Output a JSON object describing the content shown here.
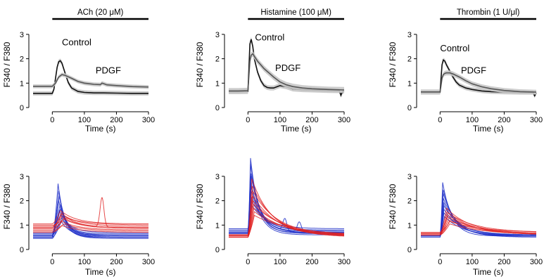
{
  "colors": {
    "control": "#111111",
    "pdgf": "#555555",
    "sem_band": "#c8c8c8",
    "blue_traces": "#1f2fc8",
    "red_traces": "#e02020"
  },
  "chart_data": [
    {
      "type": "line",
      "panel": "top-left",
      "stimulus_label": "ACh (20 μM)",
      "xlabel": "Time (s)",
      "ylabel": "F340 / F380",
      "xlim": [
        -60,
        300
      ],
      "ylim": [
        0,
        3.4
      ],
      "xticks": [
        0,
        100,
        200,
        300
      ],
      "yticks": [
        0,
        1,
        2,
        3
      ],
      "stim_bar": [
        0,
        300
      ],
      "series": [
        {
          "name": "Control",
          "label_at": [
            30,
            2.55
          ],
          "band": 0.09,
          "x": [
            -60,
            -30,
            0,
            5,
            10,
            15,
            20,
            25,
            30,
            40,
            50,
            60,
            80,
            100,
            130,
            160,
            200,
            250,
            300
          ],
          "y": [
            0.58,
            0.58,
            0.58,
            0.75,
            1.2,
            1.65,
            1.88,
            1.92,
            1.82,
            1.4,
            1.02,
            0.8,
            0.66,
            0.62,
            0.6,
            0.6,
            0.59,
            0.58,
            0.58
          ]
        },
        {
          "name": "PDGF",
          "label_at": [
            135,
            1.4
          ],
          "band": 0.08,
          "x": [
            -60,
            -30,
            0,
            10,
            20,
            30,
            40,
            60,
            80,
            100,
            130,
            150,
            155,
            160,
            170,
            200,
            250,
            300
          ],
          "y": [
            0.87,
            0.87,
            0.87,
            1.0,
            1.25,
            1.35,
            1.32,
            1.2,
            1.07,
            1.0,
            0.95,
            0.94,
            1.0,
            0.98,
            0.93,
            0.9,
            0.86,
            0.84
          ]
        }
      ]
    },
    {
      "type": "line",
      "panel": "top-center",
      "stimulus_label": "Histamine (100 μM)",
      "xlabel": "Time (s)",
      "ylabel": "F340 / F380",
      "xlim": [
        -60,
        300
      ],
      "ylim": [
        0,
        3.4
      ],
      "xticks": [
        0,
        100,
        200,
        300
      ],
      "yticks": [
        0,
        1,
        2,
        3
      ],
      "stim_bar": [
        0,
        300
      ],
      "series": [
        {
          "name": "Control",
          "label_at": [
            22,
            2.75
          ],
          "band": 0.1,
          "x": [
            -60,
            -30,
            0,
            3,
            6,
            10,
            15,
            20,
            30,
            40,
            50,
            60,
            70,
            80,
            90,
            100,
            120,
            140,
            170,
            200,
            250,
            285,
            290,
            295,
            300
          ],
          "y": [
            0.65,
            0.65,
            0.66,
            1.6,
            2.6,
            2.8,
            2.5,
            2.0,
            1.45,
            1.1,
            0.9,
            0.82,
            0.8,
            0.8,
            0.85,
            0.9,
            0.85,
            0.76,
            0.73,
            0.72,
            0.7,
            0.69,
            0.5,
            0.66,
            0.68
          ]
        },
        {
          "name": "PDGF",
          "label_at": [
            85,
            1.5
          ],
          "band": 0.12,
          "x": [
            -60,
            -30,
            0,
            3,
            6,
            10,
            15,
            20,
            30,
            40,
            50,
            60,
            80,
            100,
            120,
            140,
            170,
            200,
            250,
            300
          ],
          "y": [
            0.68,
            0.68,
            0.69,
            1.3,
            1.9,
            2.15,
            2.2,
            2.1,
            1.9,
            1.75,
            1.6,
            1.48,
            1.25,
            1.05,
            0.93,
            0.86,
            0.8,
            0.77,
            0.74,
            0.72
          ]
        }
      ]
    },
    {
      "type": "line",
      "panel": "top-right",
      "stimulus_label": "Thrombin (1 U/μl)",
      "xlabel": "Time (s)",
      "ylabel": "F340 / F380",
      "xlim": [
        -60,
        300
      ],
      "ylim": [
        0,
        3.4
      ],
      "xticks": [
        0,
        100,
        200,
        300
      ],
      "yticks": [
        0,
        1,
        2,
        3
      ],
      "stim_bar": [
        0,
        300
      ],
      "series": [
        {
          "name": "Control",
          "label_at": [
            0,
            2.3
          ],
          "band": 0.09,
          "x": [
            -60,
            -30,
            0,
            3,
            6,
            10,
            15,
            20,
            30,
            40,
            50,
            60,
            80,
            100,
            130,
            160,
            200,
            250,
            290,
            295,
            300
          ],
          "y": [
            0.62,
            0.62,
            0.62,
            1.2,
            1.75,
            1.95,
            1.9,
            1.75,
            1.5,
            1.25,
            1.05,
            0.92,
            0.8,
            0.74,
            0.68,
            0.65,
            0.63,
            0.62,
            0.62,
            0.48,
            0.6
          ]
        },
        {
          "name": "PDGF",
          "label_at": [
            65,
            1.4
          ],
          "band": 0.1,
          "x": [
            -60,
            -30,
            0,
            3,
            6,
            10,
            15,
            20,
            30,
            40,
            60,
            80,
            100,
            130,
            160,
            200,
            250,
            300
          ],
          "y": [
            0.64,
            0.64,
            0.64,
            0.9,
            1.2,
            1.35,
            1.4,
            1.42,
            1.42,
            1.38,
            1.25,
            1.1,
            0.97,
            0.85,
            0.77,
            0.7,
            0.65,
            0.63
          ]
        }
      ]
    },
    {
      "type": "line",
      "panel": "bottom-left",
      "xlabel": "Time (s)",
      "ylabel": "F340 / F380",
      "xlim": [
        -60,
        300
      ],
      "ylim": [
        0,
        3.4
      ],
      "xticks": [
        0,
        100,
        200,
        300
      ],
      "yticks": [
        0,
        1,
        2,
        3
      ],
      "series": [
        {
          "group": "blue",
          "base": 0.5,
          "peak": 2.7,
          "tpeak": 18,
          "tau": 20
        },
        {
          "group": "blue",
          "base": 0.55,
          "peak": 2.4,
          "tpeak": 20,
          "tau": 22
        },
        {
          "group": "blue",
          "base": 0.6,
          "peak": 2.2,
          "tpeak": 22,
          "tau": 20
        },
        {
          "group": "blue",
          "base": 0.5,
          "peak": 2.0,
          "tpeak": 20,
          "tau": 25
        },
        {
          "group": "blue",
          "base": 0.65,
          "peak": 1.85,
          "tpeak": 24,
          "tau": 24
        },
        {
          "group": "blue",
          "base": 0.55,
          "peak": 1.7,
          "tpeak": 25,
          "tau": 28
        },
        {
          "group": "blue",
          "base": 0.7,
          "peak": 1.6,
          "tpeak": 22,
          "tau": 30
        },
        {
          "group": "blue",
          "base": 0.45,
          "peak": 1.45,
          "tpeak": 26,
          "tau": 28
        },
        {
          "group": "blue",
          "base": 0.6,
          "peak": 1.3,
          "tpeak": 30,
          "tau": 30
        },
        {
          "group": "blue",
          "base": 0.5,
          "peak": 1.15,
          "tpeak": 28,
          "tau": 32
        },
        {
          "group": "red",
          "base": 1.05,
          "peak": 1.6,
          "tpeak": 25,
          "tau": 50
        },
        {
          "group": "red",
          "base": 0.95,
          "peak": 1.45,
          "tpeak": 30,
          "tau": 55
        },
        {
          "group": "red",
          "base": 0.9,
          "peak": 1.35,
          "tpeak": 30,
          "tau": 50
        },
        {
          "group": "red",
          "base": 0.85,
          "peak": 1.25,
          "tpeak": 35,
          "tau": 60
        },
        {
          "group": "red",
          "base": 0.8,
          "peak": 1.15,
          "tpeak": 30,
          "tau": 55
        },
        {
          "group": "red",
          "base": 0.75,
          "peak": 1.05,
          "tpeak": 35,
          "tau": 60
        },
        {
          "group": "red",
          "base": 0.7,
          "peak": 0.98,
          "tpeak": 30,
          "tau": 60
        },
        {
          "group": "red",
          "base": 1.0,
          "peak": 1.3,
          "tpeak": 40,
          "tau": 70
        },
        {
          "group": "red",
          "base": 0.9,
          "peak": 1.5,
          "tpeak": 28,
          "tau": 45,
          "spike_t": 155,
          "spike_h": 1.2
        }
      ]
    },
    {
      "type": "line",
      "panel": "bottom-center",
      "xlabel": "",
      "ylabel": "F340 / F380",
      "xlim": [
        -60,
        300
      ],
      "ylim": [
        0,
        3.4
      ],
      "xticks": [
        0,
        100,
        200,
        300
      ],
      "yticks": [
        0,
        1,
        2,
        3
      ],
      "series": [
        {
          "group": "blue",
          "base": 0.7,
          "peak": 3.75,
          "tpeak": 8,
          "tau": 25
        },
        {
          "group": "blue",
          "base": 0.75,
          "peak": 3.5,
          "tpeak": 8,
          "tau": 28
        },
        {
          "group": "blue",
          "base": 0.65,
          "peak": 3.2,
          "tpeak": 9,
          "tau": 30
        },
        {
          "group": "blue",
          "base": 0.7,
          "peak": 3.0,
          "tpeak": 10,
          "tau": 32
        },
        {
          "group": "blue",
          "base": 0.6,
          "peak": 2.8,
          "tpeak": 9,
          "tau": 30
        },
        {
          "group": "blue",
          "base": 0.8,
          "peak": 2.6,
          "tpeak": 10,
          "tau": 35
        },
        {
          "group": "blue",
          "base": 0.65,
          "peak": 2.4,
          "tpeak": 10,
          "tau": 40,
          "spike_t": 115,
          "spike_h": 0.5
        },
        {
          "group": "blue",
          "base": 0.7,
          "peak": 2.2,
          "tpeak": 11,
          "tau": 40,
          "spike_t": 160,
          "spike_h": 0.4
        },
        {
          "group": "blue",
          "base": 0.75,
          "peak": 2.0,
          "tpeak": 12,
          "tau": 45
        },
        {
          "group": "blue",
          "base": 0.85,
          "peak": 1.8,
          "tpeak": 12,
          "tau": 50
        },
        {
          "group": "red",
          "base": 0.6,
          "peak": 2.9,
          "tpeak": 12,
          "tau": 60
        },
        {
          "group": "red",
          "base": 0.55,
          "peak": 2.6,
          "tpeak": 14,
          "tau": 70
        },
        {
          "group": "red",
          "base": 0.6,
          "peak": 2.4,
          "tpeak": 15,
          "tau": 75
        },
        {
          "group": "red",
          "base": 0.5,
          "peak": 2.2,
          "tpeak": 15,
          "tau": 80
        },
        {
          "group": "red",
          "base": 0.55,
          "peak": 2.0,
          "tpeak": 16,
          "tau": 85
        },
        {
          "group": "red",
          "base": 0.6,
          "peak": 1.85,
          "tpeak": 18,
          "tau": 90
        },
        {
          "group": "red",
          "base": 0.5,
          "peak": 1.7,
          "tpeak": 18,
          "tau": 95
        },
        {
          "group": "red",
          "base": 0.55,
          "peak": 1.55,
          "tpeak": 20,
          "tau": 100
        },
        {
          "group": "red",
          "base": 0.6,
          "peak": 1.4,
          "tpeak": 20,
          "tau": 110
        }
      ]
    },
    {
      "type": "line",
      "panel": "bottom-right",
      "xlabel": "Time (s)",
      "ylabel": "F340 / F380",
      "xlim": [
        -60,
        300
      ],
      "ylim": [
        0,
        3.4
      ],
      "xticks": [
        0,
        100,
        200,
        300
      ],
      "yticks": [
        0,
        1,
        2,
        3
      ],
      "series": [
        {
          "group": "blue",
          "base": 0.55,
          "peak": 2.75,
          "tpeak": 8,
          "tau": 30
        },
        {
          "group": "blue",
          "base": 0.6,
          "peak": 2.5,
          "tpeak": 9,
          "tau": 35
        },
        {
          "group": "blue",
          "base": 0.55,
          "peak": 2.3,
          "tpeak": 10,
          "tau": 40
        },
        {
          "group": "blue",
          "base": 0.6,
          "peak": 2.1,
          "tpeak": 10,
          "tau": 45
        },
        {
          "group": "blue",
          "base": 0.55,
          "peak": 1.95,
          "tpeak": 11,
          "tau": 45
        },
        {
          "group": "blue",
          "base": 0.6,
          "peak": 1.8,
          "tpeak": 12,
          "tau": 50
        },
        {
          "group": "blue",
          "base": 0.5,
          "peak": 1.65,
          "tpeak": 12,
          "tau": 55
        },
        {
          "group": "blue",
          "base": 0.6,
          "peak": 1.5,
          "tpeak": 12,
          "tau": 60
        },
        {
          "group": "blue",
          "base": 0.55,
          "peak": 1.35,
          "tpeak": 14,
          "tau": 60
        },
        {
          "group": "red",
          "base": 0.65,
          "peak": 1.7,
          "tpeak": 20,
          "tau": 75
        },
        {
          "group": "red",
          "base": 0.6,
          "peak": 1.55,
          "tpeak": 22,
          "tau": 80
        },
        {
          "group": "red",
          "base": 0.7,
          "peak": 1.5,
          "tpeak": 25,
          "tau": 85
        },
        {
          "group": "red",
          "base": 0.6,
          "peak": 1.4,
          "tpeak": 25,
          "tau": 90
        },
        {
          "group": "red",
          "base": 0.65,
          "peak": 1.3,
          "tpeak": 28,
          "tau": 90
        },
        {
          "group": "red",
          "base": 0.6,
          "peak": 1.2,
          "tpeak": 30,
          "tau": 95
        },
        {
          "group": "red",
          "base": 0.7,
          "peak": 1.15,
          "tpeak": 30,
          "tau": 100
        },
        {
          "group": "red",
          "base": 0.6,
          "peak": 1.05,
          "tpeak": 30,
          "tau": 110
        }
      ]
    }
  ]
}
